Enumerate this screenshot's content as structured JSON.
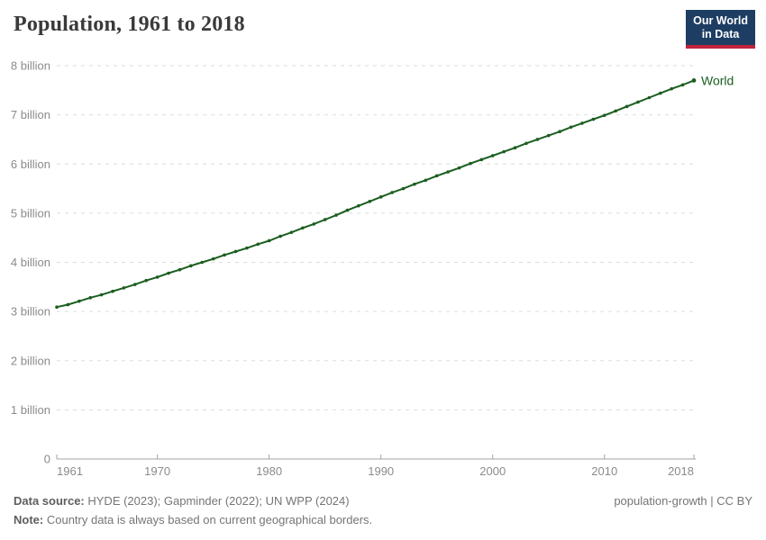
{
  "header": {
    "title": "Population, 1961 to 2018",
    "logo": {
      "line1": "Our World",
      "line2": "in Data"
    }
  },
  "chart_data": {
    "type": "line",
    "title": "Population, 1961 to 2018",
    "xlabel": "",
    "ylabel": "",
    "xlim": [
      1961,
      2018
    ],
    "ylim": [
      0,
      8
    ],
    "grid": "horizontal-dashed",
    "legend": "end-of-line-label",
    "x_ticks": [
      1961,
      1970,
      1980,
      1990,
      2000,
      2010,
      2018
    ],
    "y_ticks": [
      {
        "value": 0,
        "label": "0"
      },
      {
        "value": 1,
        "label": "1 billion"
      },
      {
        "value": 2,
        "label": "2 billion"
      },
      {
        "value": 3,
        "label": "3 billion"
      },
      {
        "value": 4,
        "label": "4 billion"
      },
      {
        "value": 5,
        "label": "5 billion"
      },
      {
        "value": 6,
        "label": "6 billion"
      },
      {
        "value": 7,
        "label": "7 billion"
      },
      {
        "value": 8,
        "label": "8 billion"
      }
    ],
    "x": [
      1961,
      1962,
      1963,
      1964,
      1965,
      1966,
      1967,
      1968,
      1969,
      1970,
      1971,
      1972,
      1973,
      1974,
      1975,
      1976,
      1977,
      1978,
      1979,
      1980,
      1981,
      1982,
      1983,
      1984,
      1985,
      1986,
      1987,
      1988,
      1989,
      1990,
      1991,
      1992,
      1993,
      1994,
      1995,
      1996,
      1997,
      1998,
      1999,
      2000,
      2001,
      2002,
      2003,
      2004,
      2005,
      2006,
      2007,
      2008,
      2009,
      2010,
      2011,
      2012,
      2013,
      2014,
      2015,
      2016,
      2017,
      2018
    ],
    "series": [
      {
        "name": "World",
        "unit": "billion people",
        "color": "#1b5e20",
        "values": [
          3.09,
          3.14,
          3.21,
          3.28,
          3.34,
          3.41,
          3.48,
          3.55,
          3.63,
          3.7,
          3.78,
          3.85,
          3.93,
          4.0,
          4.07,
          4.15,
          4.22,
          4.29,
          4.37,
          4.44,
          4.53,
          4.61,
          4.7,
          4.78,
          4.87,
          4.96,
          5.06,
          5.15,
          5.24,
          5.33,
          5.42,
          5.5,
          5.59,
          5.67,
          5.76,
          5.84,
          5.92,
          6.01,
          6.09,
          6.17,
          6.25,
          6.33,
          6.42,
          6.5,
          6.58,
          6.66,
          6.75,
          6.83,
          6.91,
          6.99,
          7.08,
          7.17,
          7.26,
          7.35,
          7.44,
          7.53,
          7.61,
          7.7
        ]
      }
    ]
  },
  "footer": {
    "source_label": "Data source:",
    "source_text": "HYDE (2023); Gapminder (2022); UN WPP (2024)",
    "note_label": "Note:",
    "note_text": "Country data is always based on current geographical borders.",
    "right_text": "population-growth | CC BY"
  },
  "colors": {
    "series_world": "#1b5e20",
    "grid": "#dedede",
    "axis": "#a3a3a3",
    "tick_text": "#8b8b8b",
    "title_text": "#3a3a3a",
    "footer_text": "#757575",
    "footer_label_text": "#5e5e5e",
    "logo_bg": "#1d3d63",
    "logo_accent": "#c0233c"
  }
}
